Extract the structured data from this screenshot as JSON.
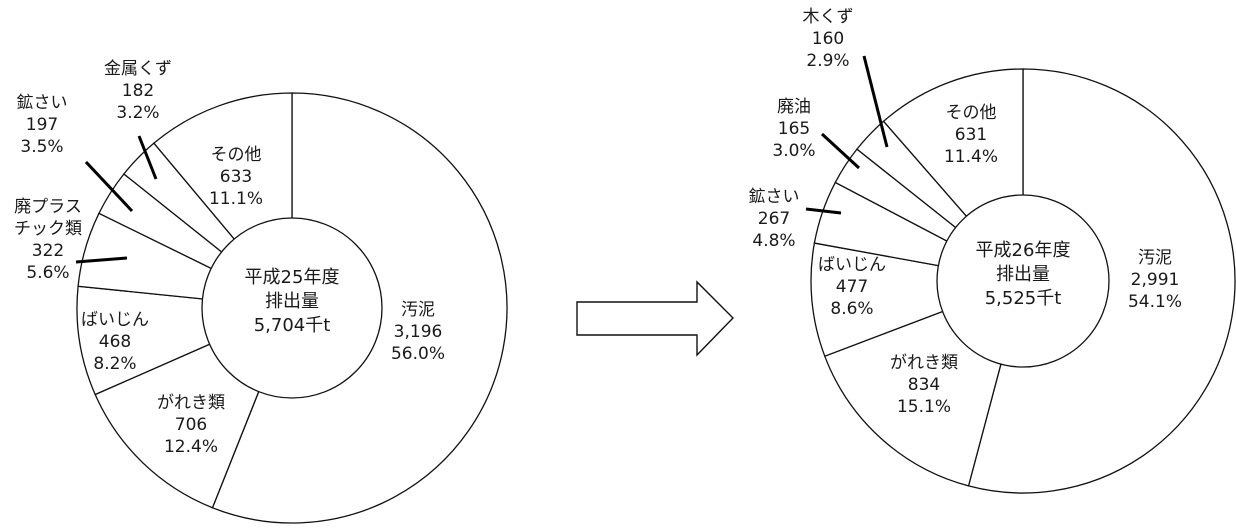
{
  "chart_data": [
    {
      "type": "pie",
      "center_label": [
        "平成25年度",
        "排出量",
        "5,704千t"
      ],
      "slices": [
        {
          "name": "汚泥",
          "value": 3196,
          "value_label": "3,196",
          "percent": "56.0%"
        },
        {
          "name": "がれき類",
          "value": 706,
          "value_label": "706",
          "percent": "12.4%"
        },
        {
          "name": "ばいじん",
          "value": 468,
          "value_label": "468",
          "percent": "8.2%"
        },
        {
          "name": "廃プラスチック類",
          "name_lines": [
            "廃プラス",
            "チック類"
          ],
          "value": 322,
          "value_label": "322",
          "percent": "5.6%"
        },
        {
          "name": "鉱さい",
          "value": 197,
          "value_label": "197",
          "percent": "3.5%"
        },
        {
          "name": "金属くず",
          "value": 182,
          "value_label": "182",
          "percent": "3.2%"
        },
        {
          "name": "その他",
          "value": 633,
          "value_label": "633",
          "percent": "11.1%"
        }
      ]
    },
    {
      "type": "pie",
      "center_label": [
        "平成26年度",
        "排出量",
        "5,525千t"
      ],
      "slices": [
        {
          "name": "汚泥",
          "value": 2991,
          "value_label": "2,991",
          "percent": "54.1%"
        },
        {
          "name": "がれき類",
          "value": 834,
          "value_label": "834",
          "percent": "15.1%"
        },
        {
          "name": "ばいじん",
          "value": 477,
          "value_label": "477",
          "percent": "8.6%"
        },
        {
          "name": "鉱さい",
          "value": 267,
          "value_label": "267",
          "percent": "4.8%"
        },
        {
          "name": "廃油",
          "value": 165,
          "value_label": "165",
          "percent": "3.0%"
        },
        {
          "name": "木くず",
          "value": 160,
          "value_label": "160",
          "percent": "2.9%"
        },
        {
          "name": "その他",
          "value": 631,
          "value_label": "631",
          "percent": "11.4%"
        }
      ]
    }
  ]
}
